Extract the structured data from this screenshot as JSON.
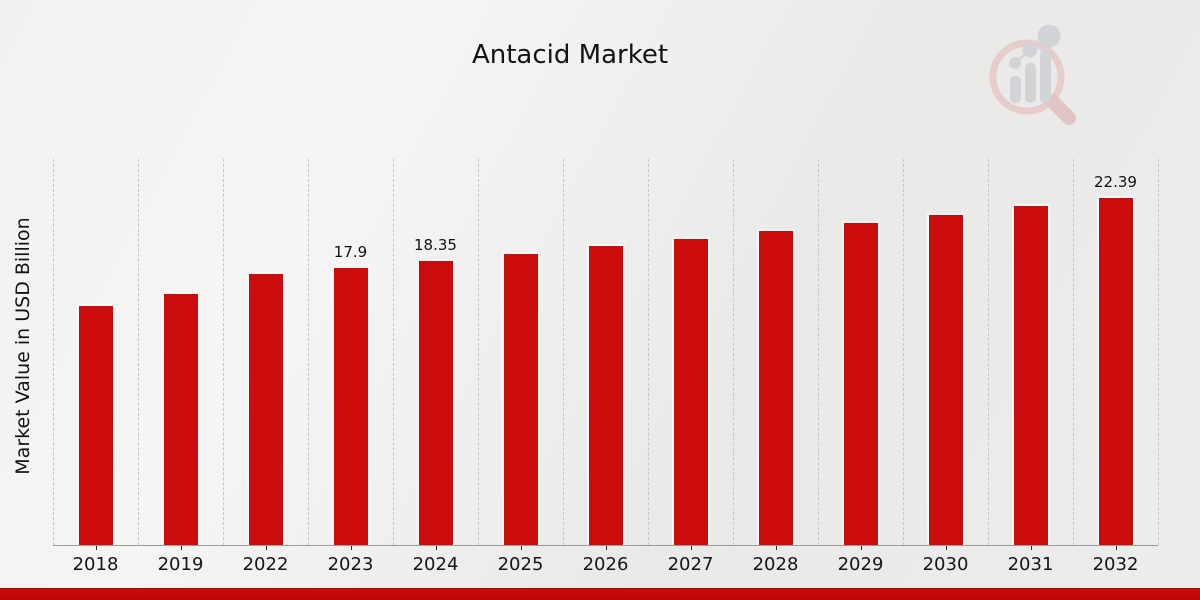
{
  "header": {
    "title": "Antacid Market",
    "logo_name": "market-research-future-watermark"
  },
  "chart_data": {
    "type": "bar",
    "title": "Antacid Market",
    "xlabel": "",
    "ylabel": "Market Value in USD Billion",
    "categories": [
      "2018",
      "2019",
      "2022",
      "2023",
      "2024",
      "2025",
      "2026",
      "2027",
      "2028",
      "2029",
      "2030",
      "2031",
      "2032"
    ],
    "values": [
      15.45,
      16.2,
      17.5,
      17.9,
      18.35,
      18.81,
      19.28,
      19.77,
      20.27,
      20.78,
      21.3,
      21.84,
      22.39
    ],
    "bar_labels": [
      "",
      "",
      "",
      "17.9",
      "18.35",
      "",
      "",
      "",
      "",
      "",
      "",
      "",
      "22.39"
    ],
    "ylim": [
      0,
      24.75
    ],
    "grid": "vertical-dashed",
    "legend": "none",
    "bar_color": "#cc0c0c",
    "bar_edge_color": "#f8f7f6",
    "label_color": "#111111"
  },
  "footer": {
    "band_color": "#c40707"
  }
}
